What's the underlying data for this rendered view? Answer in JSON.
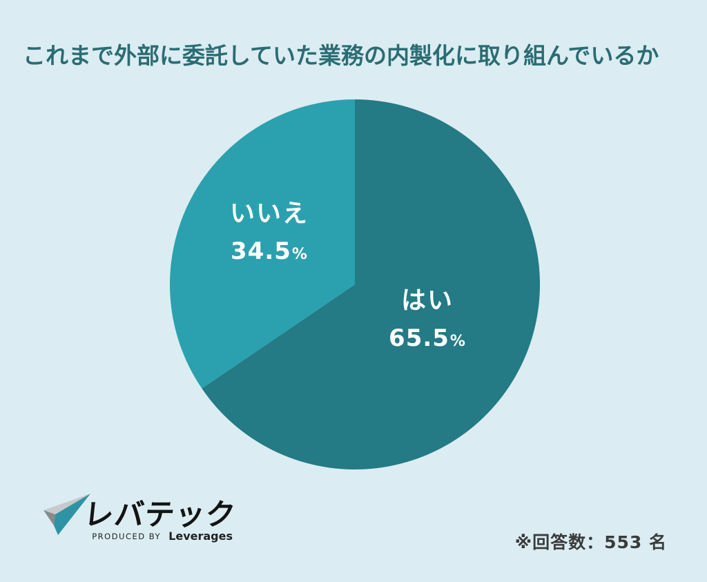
{
  "chart_data": {
    "type": "pie",
    "title": "これまで外部に委託していた業務の内製化に取り組んでいるか",
    "start_angle_deg": 0,
    "direction": "clockwise",
    "legend_position": "none",
    "slices": [
      {
        "label": "はい",
        "value": 65.5,
        "unit": "%",
        "color": "#247A85",
        "text_color": "#FFFFFF"
      },
      {
        "label": "いいえ",
        "value": 34.5,
        "unit": "%",
        "color": "#2BA1AF",
        "text_color": "#FFFFFF"
      }
    ],
    "annotation": "※回答数：553 名"
  },
  "logo": {
    "brand": "レバテック",
    "produced_by": "PRODUCED BY",
    "company": "Leverages"
  },
  "colors": {
    "background": "#DBEDF2",
    "title": "#2B6C74",
    "slice_yes": "#247A85",
    "slice_no": "#2BA1AF",
    "footnote": "#3B3B3B",
    "logo_teal": "#2E93A4",
    "logo_gray_light": "#C7CACB",
    "logo_gray_dark": "#87898B"
  }
}
